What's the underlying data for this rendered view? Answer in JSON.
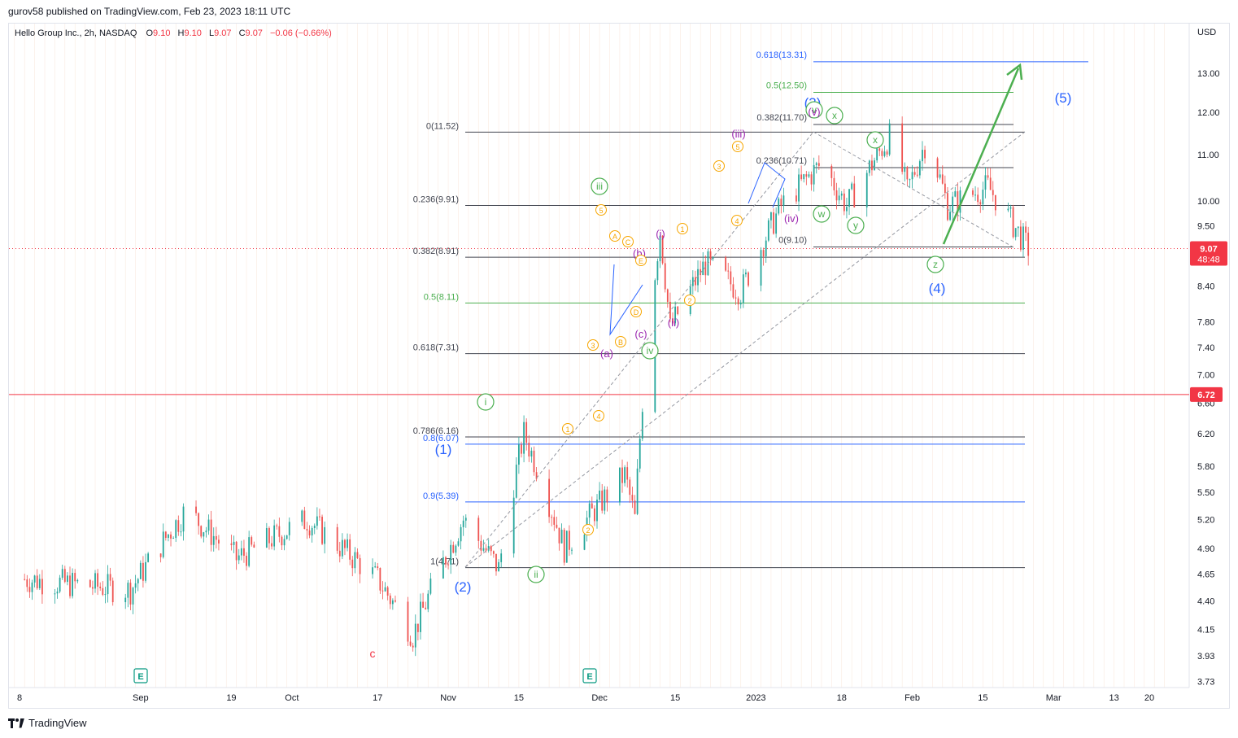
{
  "publisher_line": "gurov58 published on TradingView.com, Feb 23, 2023 18:11 UTC",
  "header": {
    "symbol": "Hello Group Inc., 2h, NASDAQ",
    "o_label": "O",
    "o": "9.10",
    "h_label": "H",
    "h": "9.10",
    "l_label": "L",
    "l": "9.07",
    "c_label": "C",
    "c": "9.07",
    "change": "−0.06 (−0.66%)"
  },
  "footer_brand": "TradingView",
  "colors": {
    "up": "#26a69a",
    "down": "#ef5350",
    "grid_v": "#f7d9c4",
    "fib": "#434651",
    "green": "#4caf50",
    "blue": "#2962ff",
    "red": "#f23645",
    "orange": "#f7a600",
    "purple": "#9c27b0",
    "wave_blue": "#2962ff",
    "teal": "#089981"
  },
  "chart_data": {
    "type": "candlestick",
    "currency": "USD",
    "current_price": "9.07",
    "countdown": "48:48",
    "y_ticks": [
      "13.00",
      "12.00",
      "11.00",
      "10.00",
      "9.50",
      "8.40",
      "7.80",
      "7.40",
      "7.00",
      "6.60",
      "6.20",
      "5.80",
      "5.50",
      "5.20",
      "4.90",
      "4.65",
      "4.40",
      "4.15",
      "3.93",
      "3.73"
    ],
    "x_ticks": [
      "8",
      "Sep",
      "19",
      "Oct",
      "17",
      "Nov",
      "15",
      "Dec",
      "15",
      "2023",
      "18",
      "Feb",
      "15",
      "Mar",
      "13",
      "20"
    ],
    "horizontal_line": {
      "price": 6.72,
      "label": "6.72"
    },
    "earnings_markers": [
      "E",
      "E"
    ],
    "fib_retracement": [
      {
        "label": "0(11.52)",
        "price": 11.52
      },
      {
        "label": "0.236(9.91)",
        "price": 9.91
      },
      {
        "label": "0.382(8.91)",
        "price": 8.91
      },
      {
        "label": "0.5(8.11)",
        "price": 8.11
      },
      {
        "label": "0.618(7.31)",
        "price": 7.31
      },
      {
        "label": "0.786(6.16)",
        "price": 6.16
      },
      {
        "label": "0.8(6.07)",
        "price": 6.07
      },
      {
        "label": "0.9(5.39)",
        "price": 5.39
      },
      {
        "label": "1(4.71)",
        "price": 4.71
      }
    ],
    "fib_extension": [
      {
        "label": "0.618(13.31)",
        "price": 13.31
      },
      {
        "label": "0.5(12.50)",
        "price": 12.5
      },
      {
        "label": "0.382(11.70)",
        "price": 11.7
      },
      {
        "label": "0.236(10.71)",
        "price": 10.71
      },
      {
        "label": "0(9.10)",
        "price": 9.1
      }
    ],
    "wave_labels": [
      {
        "text": "c",
        "style": "red"
      },
      {
        "text": "(1)",
        "style": "blue"
      },
      {
        "text": "(2)",
        "style": "blue"
      },
      {
        "text": "(3)",
        "style": "blue"
      },
      {
        "text": "(4)",
        "style": "blue"
      },
      {
        "text": "(5)",
        "style": "blue"
      },
      {
        "text": "i",
        "style": "green-circle"
      },
      {
        "text": "ii",
        "style": "green-circle"
      },
      {
        "text": "iii",
        "style": "green-circle"
      },
      {
        "text": "iv",
        "style": "green-circle"
      },
      {
        "text": "v",
        "style": "green-circle"
      },
      {
        "text": "w",
        "style": "green-circle"
      },
      {
        "text": "x",
        "style": "green-circle"
      },
      {
        "text": "x",
        "style": "green-circle"
      },
      {
        "text": "y",
        "style": "green-circle"
      },
      {
        "text": "z",
        "style": "green-circle"
      },
      {
        "text": "(i)",
        "style": "purple"
      },
      {
        "text": "(ii)",
        "style": "purple"
      },
      {
        "text": "(iii)",
        "style": "purple"
      },
      {
        "text": "(iv)",
        "style": "purple"
      },
      {
        "text": "(v)",
        "style": "purple"
      },
      {
        "text": "(a)",
        "style": "purple"
      },
      {
        "text": "(b)",
        "style": "purple"
      },
      {
        "text": "(c)",
        "style": "purple"
      },
      {
        "text": "1",
        "style": "orange-circle"
      },
      {
        "text": "2",
        "style": "orange-circle"
      },
      {
        "text": "3",
        "style": "orange-circle"
      },
      {
        "text": "4",
        "style": "orange-circle"
      },
      {
        "text": "5",
        "style": "orange-circle"
      },
      {
        "text": "1",
        "style": "orange-circle"
      },
      {
        "text": "2",
        "style": "orange-circle"
      },
      {
        "text": "3",
        "style": "orange-circle"
      },
      {
        "text": "4",
        "style": "orange-circle"
      },
      {
        "text": "5",
        "style": "orange-circle"
      },
      {
        "text": "A",
        "style": "orange-circle"
      },
      {
        "text": "B",
        "style": "orange-circle"
      },
      {
        "text": "C",
        "style": "orange-circle"
      },
      {
        "text": "D",
        "style": "orange-circle"
      },
      {
        "text": "E",
        "style": "orange-circle"
      }
    ],
    "price_path_approx": [
      {
        "x": "Aug 8",
        "y": 4.6
      },
      {
        "x": "Aug 29",
        "y": 4.5
      },
      {
        "x": "Sep 9",
        "y": 5.3
      },
      {
        "x": "Sep 19",
        "y": 4.8
      },
      {
        "x": "Oct 3",
        "y": 5.2
      },
      {
        "x": "Oct 17",
        "y": 4.6
      },
      {
        "x": "Oct 24",
        "y": 4.1
      },
      {
        "x": "Nov 3",
        "y": 5.2
      },
      {
        "x": "Nov 10",
        "y": 4.7
      },
      {
        "x": "Nov 15",
        "y": 6.2
      },
      {
        "x": "Nov 23",
        "y": 4.9
      },
      {
        "x": "Dec 5",
        "y": 5.7
      },
      {
        "x": "Dec 7",
        "y": 5.2
      },
      {
        "x": "Dec 9",
        "y": 7.1
      },
      {
        "x": "Dec 12",
        "y": 9.4
      },
      {
        "x": "Dec 14",
        "y": 7.7
      },
      {
        "x": "Dec 21",
        "y": 8.8
      },
      {
        "x": "Dec 28",
        "y": 8.3
      },
      {
        "x": "Jan 5",
        "y": 9.9
      },
      {
        "x": "Jan 13",
        "y": 10.8
      },
      {
        "x": "Jan 18",
        "y": 9.9
      },
      {
        "x": "Jan 27",
        "y": 11.5
      },
      {
        "x": "Jan 30",
        "y": 10.2
      },
      {
        "x": "Feb 3",
        "y": 11.4
      },
      {
        "x": "Feb 7",
        "y": 9.9
      },
      {
        "x": "Feb 15",
        "y": 10.3
      },
      {
        "x": "Feb 23",
        "y": 9.07
      }
    ],
    "projection": {
      "from_label": "(4)",
      "to_label": "(5)"
    }
  }
}
